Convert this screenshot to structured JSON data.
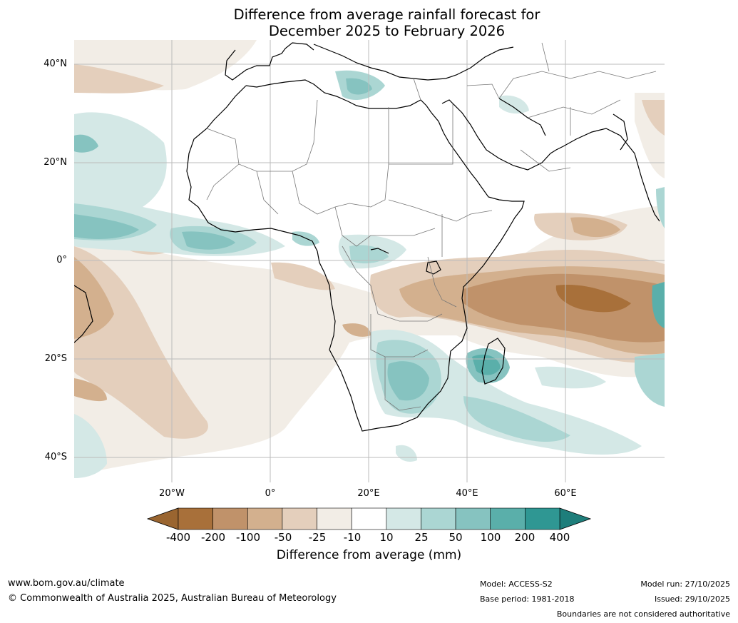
{
  "title": {
    "line1": "Difference from average rainfall forecast for",
    "line2": "December 2025 to February 2026"
  },
  "map": {
    "lat_labels": [
      "40°N",
      "20°N",
      "0°",
      "20°S",
      "40°S"
    ],
    "lon_labels": [
      "20°W",
      "0°",
      "20°E",
      "40°E",
      "60°E"
    ]
  },
  "legend": {
    "title": "Difference from average (mm)",
    "ticks": [
      "-400",
      "-200",
      "-100",
      "-50",
      "-25",
      "-10",
      "10",
      "25",
      "50",
      "100",
      "200",
      "400"
    ],
    "colors": [
      "#A8703A",
      "#C0926A",
      "#D3B08E",
      "#E4CFBC",
      "#F2EDE6",
      "#FFFFFF",
      "#D4E8E6",
      "#ABD6D3",
      "#86C3C0",
      "#5AAFAA",
      "#2F9793",
      "#1E7E7B"
    ],
    "below_color": "#9A6530",
    "above_color": "#1E7E7B"
  },
  "footer": {
    "website": "www.bom.gov.au/climate",
    "copyright": "© Commonwealth of Australia 2025, Australian Bureau of Meteorology",
    "model": "Model: ACCESS-S2",
    "base_period": "Base period: 1981-2018",
    "model_run": "Model run: 27/10/2025",
    "issued": "Issued: 29/10/2025",
    "disclaimer": "Boundaries are not considered authoritative"
  }
}
